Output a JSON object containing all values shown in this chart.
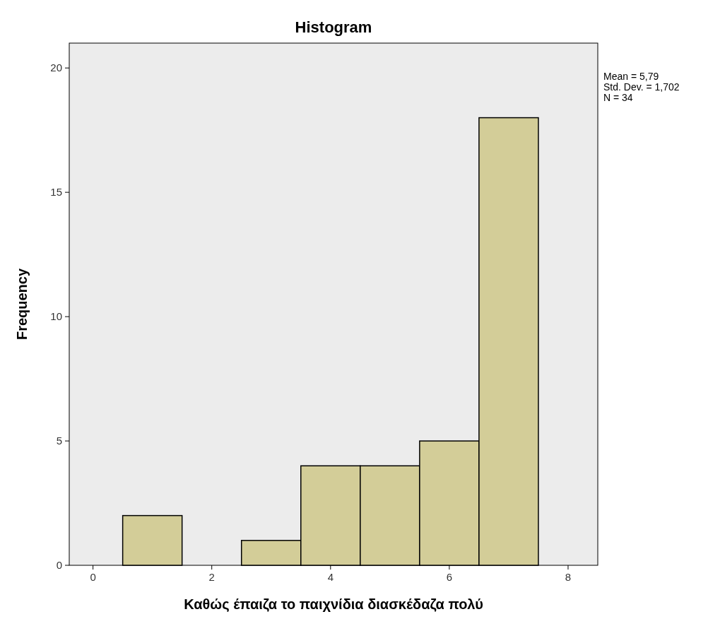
{
  "chart_data": {
    "type": "histogram",
    "title": "Histogram",
    "xlabel": "Καθώς έπαιζα το παιχνίδια διασκέδαζα πολύ",
    "ylabel": "Frequency",
    "bins": [
      0.5,
      1.5,
      2.5,
      3.5,
      4.5,
      5.5,
      6.5,
      7.5
    ],
    "values": [
      2,
      0,
      1,
      4,
      4,
      5,
      18
    ],
    "color": "#d3cd98",
    "xlim": [
      -0.4,
      8.5
    ],
    "xticks": [
      0,
      2,
      4,
      6,
      8
    ],
    "ylim": [
      0,
      21
    ],
    "yticks": [
      0,
      5,
      10,
      15,
      20
    ],
    "grid": false,
    "annotations": [
      "Mean = 5,79",
      "Std. Dev. = 1,702",
      "N = 34"
    ]
  }
}
